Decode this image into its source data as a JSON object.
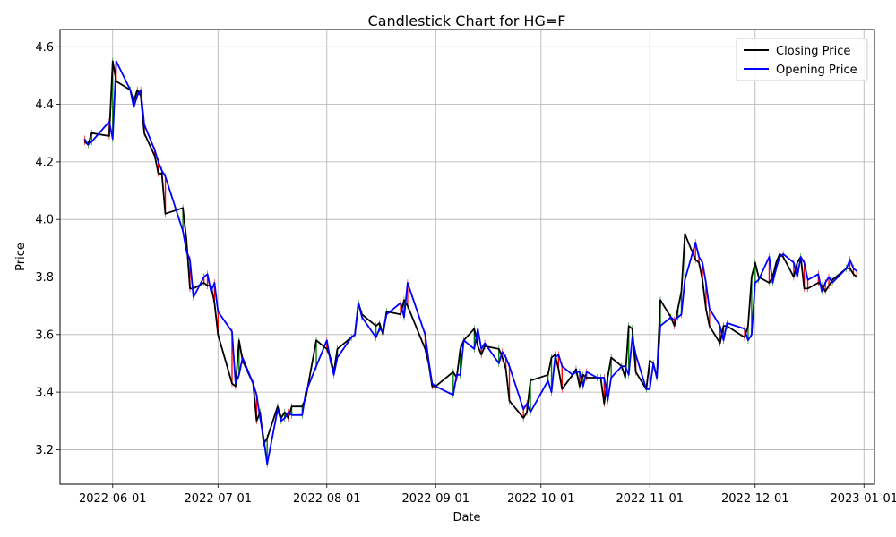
{
  "chart_data": {
    "type": "line",
    "title": "Candlestick Chart for HG=F",
    "xlabel": "Date",
    "ylabel": "Price",
    "x_range": [
      "2022-05-17",
      "2023-01-04"
    ],
    "ylim": [
      3.08,
      4.66
    ],
    "x_ticks": [
      "2022-06-01",
      "2022-07-01",
      "2022-08-01",
      "2022-09-01",
      "2022-10-01",
      "2022-11-01",
      "2022-12-01",
      "2023-01-01"
    ],
    "y_ticks": [
      3.2,
      3.4,
      3.6,
      3.8,
      4.0,
      4.2,
      4.4,
      4.6
    ],
    "y_tick_labels": [
      "3.2",
      "3.4",
      "3.6",
      "3.8",
      "4.0",
      "4.2",
      "4.4",
      "4.6"
    ],
    "grid": true,
    "legend_position": "upper-right",
    "candle_up_color": "#008000",
    "candle_down_color": "#ff0000",
    "series": [
      {
        "name": "Closing Price",
        "color": "#000000",
        "points": [
          [
            "2022-05-24",
            4.27
          ],
          [
            "2022-05-25",
            4.26
          ],
          [
            "2022-05-26",
            4.3
          ],
          [
            "2022-05-31",
            4.29
          ],
          [
            "2022-06-01",
            4.55
          ],
          [
            "2022-06-02",
            4.48
          ],
          [
            "2022-06-06",
            4.45
          ],
          [
            "2022-06-07",
            4.41
          ],
          [
            "2022-06-08",
            4.45
          ],
          [
            "2022-06-09",
            4.43
          ],
          [
            "2022-06-10",
            4.3
          ],
          [
            "2022-06-13",
            4.22
          ],
          [
            "2022-06-14",
            4.16
          ],
          [
            "2022-06-15",
            4.16
          ],
          [
            "2022-06-16",
            4.02
          ],
          [
            "2022-06-21",
            4.04
          ],
          [
            "2022-06-22",
            3.93
          ],
          [
            "2022-06-23",
            3.76
          ],
          [
            "2022-06-24",
            3.76
          ],
          [
            "2022-06-27",
            3.78
          ],
          [
            "2022-06-28",
            3.77
          ],
          [
            "2022-06-29",
            3.77
          ],
          [
            "2022-06-30",
            3.71
          ],
          [
            "2022-07-01",
            3.6
          ],
          [
            "2022-07-05",
            3.43
          ],
          [
            "2022-07-06",
            3.42
          ],
          [
            "2022-07-07",
            3.58
          ],
          [
            "2022-07-08",
            3.51
          ],
          [
            "2022-07-11",
            3.43
          ],
          [
            "2022-07-12",
            3.3
          ],
          [
            "2022-07-13",
            3.33
          ],
          [
            "2022-07-14",
            3.22
          ],
          [
            "2022-07-15",
            3.24
          ],
          [
            "2022-07-18",
            3.35
          ],
          [
            "2022-07-19",
            3.31
          ],
          [
            "2022-07-20",
            3.33
          ],
          [
            "2022-07-21",
            3.31
          ],
          [
            "2022-07-22",
            3.35
          ],
          [
            "2022-07-25",
            3.35
          ],
          [
            "2022-07-26",
            3.38
          ],
          [
            "2022-07-29",
            3.58
          ],
          [
            "2022-08-01",
            3.55
          ],
          [
            "2022-08-02",
            3.52
          ],
          [
            "2022-08-03",
            3.47
          ],
          [
            "2022-08-04",
            3.55
          ],
          [
            "2022-08-08",
            3.59
          ],
          [
            "2022-08-09",
            3.6
          ],
          [
            "2022-08-10",
            3.71
          ],
          [
            "2022-08-11",
            3.67
          ],
          [
            "2022-08-15",
            3.63
          ],
          [
            "2022-08-16",
            3.64
          ],
          [
            "2022-08-17",
            3.6
          ],
          [
            "2022-08-18",
            3.68
          ],
          [
            "2022-08-22",
            3.67
          ],
          [
            "2022-08-23",
            3.72
          ],
          [
            "2022-08-24",
            3.7
          ],
          [
            "2022-08-29",
            3.55
          ],
          [
            "2022-08-30",
            3.5
          ],
          [
            "2022-08-31",
            3.42
          ],
          [
            "2022-09-01",
            3.42
          ],
          [
            "2022-09-06",
            3.47
          ],
          [
            "2022-09-07",
            3.45
          ],
          [
            "2022-09-08",
            3.55
          ],
          [
            "2022-09-09",
            3.58
          ],
          [
            "2022-09-12",
            3.62
          ],
          [
            "2022-09-13",
            3.56
          ],
          [
            "2022-09-14",
            3.53
          ],
          [
            "2022-09-15",
            3.56
          ],
          [
            "2022-09-19",
            3.55
          ],
          [
            "2022-09-20",
            3.52
          ],
          [
            "2022-09-21",
            3.48
          ],
          [
            "2022-09-22",
            3.37
          ],
          [
            "2022-09-26",
            3.31
          ],
          [
            "2022-09-27",
            3.33
          ],
          [
            "2022-09-28",
            3.44
          ],
          [
            "2022-10-03",
            3.46
          ],
          [
            "2022-10-04",
            3.52
          ],
          [
            "2022-10-05",
            3.53
          ],
          [
            "2022-10-06",
            3.48
          ],
          [
            "2022-10-07",
            3.41
          ],
          [
            "2022-10-10",
            3.46
          ],
          [
            "2022-10-11",
            3.48
          ],
          [
            "2022-10-12",
            3.42
          ],
          [
            "2022-10-13",
            3.46
          ],
          [
            "2022-10-14",
            3.45
          ],
          [
            "2022-10-17",
            3.45
          ],
          [
            "2022-10-18",
            3.45
          ],
          [
            "2022-10-19",
            3.36
          ],
          [
            "2022-10-20",
            3.45
          ],
          [
            "2022-10-21",
            3.52
          ],
          [
            "2022-10-24",
            3.49
          ],
          [
            "2022-10-25",
            3.45
          ],
          [
            "2022-10-26",
            3.63
          ],
          [
            "2022-10-27",
            3.62
          ],
          [
            "2022-10-28",
            3.47
          ],
          [
            "2022-10-31",
            3.41
          ],
          [
            "2022-11-01",
            3.51
          ],
          [
            "2022-11-02",
            3.5
          ],
          [
            "2022-11-03",
            3.45
          ],
          [
            "2022-11-04",
            3.72
          ],
          [
            "2022-11-07",
            3.66
          ],
          [
            "2022-11-08",
            3.63
          ],
          [
            "2022-11-09",
            3.69
          ],
          [
            "2022-11-10",
            3.75
          ],
          [
            "2022-11-11",
            3.95
          ],
          [
            "2022-11-14",
            3.86
          ],
          [
            "2022-11-15",
            3.85
          ],
          [
            "2022-11-16",
            3.79
          ],
          [
            "2022-11-17",
            3.69
          ],
          [
            "2022-11-18",
            3.63
          ],
          [
            "2022-11-21",
            3.57
          ],
          [
            "2022-11-22",
            3.63
          ],
          [
            "2022-11-23",
            3.63
          ],
          [
            "2022-11-28",
            3.59
          ],
          [
            "2022-11-29",
            3.63
          ],
          [
            "2022-11-30",
            3.8
          ],
          [
            "2022-12-01",
            3.85
          ],
          [
            "2022-12-02",
            3.8
          ],
          [
            "2022-12-05",
            3.78
          ],
          [
            "2022-12-06",
            3.8
          ],
          [
            "2022-12-07",
            3.85
          ],
          [
            "2022-12-08",
            3.88
          ],
          [
            "2022-12-09",
            3.87
          ],
          [
            "2022-12-12",
            3.8
          ],
          [
            "2022-12-13",
            3.85
          ],
          [
            "2022-12-14",
            3.87
          ],
          [
            "2022-12-15",
            3.76
          ],
          [
            "2022-12-16",
            3.76
          ],
          [
            "2022-12-19",
            3.78
          ],
          [
            "2022-12-20",
            3.77
          ],
          [
            "2022-12-21",
            3.75
          ],
          [
            "2022-12-22",
            3.77
          ],
          [
            "2022-12-23",
            3.79
          ],
          [
            "2022-12-27",
            3.83
          ],
          [
            "2022-12-28",
            3.83
          ],
          [
            "2022-12-29",
            3.81
          ],
          [
            "2022-12-30",
            3.8
          ]
        ]
      },
      {
        "name": "Opening Price",
        "color": "#0000ff",
        "points": [
          [
            "2022-05-24",
            4.28
          ],
          [
            "2022-05-25",
            4.26
          ],
          [
            "2022-05-26",
            4.27
          ],
          [
            "2022-05-31",
            4.34
          ],
          [
            "2022-06-01",
            4.28
          ],
          [
            "2022-06-02",
            4.55
          ],
          [
            "2022-06-06",
            4.45
          ],
          [
            "2022-06-07",
            4.39
          ],
          [
            "2022-06-08",
            4.43
          ],
          [
            "2022-06-09",
            4.45
          ],
          [
            "2022-06-10",
            4.33
          ],
          [
            "2022-06-13",
            4.24
          ],
          [
            "2022-06-14",
            4.2
          ],
          [
            "2022-06-15",
            4.17
          ],
          [
            "2022-06-16",
            4.15
          ],
          [
            "2022-06-21",
            3.96
          ],
          [
            "2022-06-22",
            3.89
          ],
          [
            "2022-06-23",
            3.86
          ],
          [
            "2022-06-24",
            3.73
          ],
          [
            "2022-06-27",
            3.8
          ],
          [
            "2022-06-28",
            3.81
          ],
          [
            "2022-06-29",
            3.75
          ],
          [
            "2022-06-30",
            3.78
          ],
          [
            "2022-07-01",
            3.68
          ],
          [
            "2022-07-05",
            3.61
          ],
          [
            "2022-07-06",
            3.43
          ],
          [
            "2022-07-07",
            3.46
          ],
          [
            "2022-07-08",
            3.52
          ],
          [
            "2022-07-11",
            3.43
          ],
          [
            "2022-07-12",
            3.39
          ],
          [
            "2022-07-13",
            3.31
          ],
          [
            "2022-07-14",
            3.24
          ],
          [
            "2022-07-15",
            3.15
          ],
          [
            "2022-07-18",
            3.34
          ],
          [
            "2022-07-19",
            3.3
          ],
          [
            "2022-07-20",
            3.31
          ],
          [
            "2022-07-21",
            3.33
          ],
          [
            "2022-07-22",
            3.32
          ],
          [
            "2022-07-25",
            3.32
          ],
          [
            "2022-07-26",
            3.4
          ],
          [
            "2022-07-29",
            3.49
          ],
          [
            "2022-08-01",
            3.58
          ],
          [
            "2022-08-02",
            3.51
          ],
          [
            "2022-08-03",
            3.46
          ],
          [
            "2022-08-04",
            3.52
          ],
          [
            "2022-08-08",
            3.59
          ],
          [
            "2022-08-09",
            3.6
          ],
          [
            "2022-08-10",
            3.71
          ],
          [
            "2022-08-11",
            3.66
          ],
          [
            "2022-08-15",
            3.59
          ],
          [
            "2022-08-16",
            3.62
          ],
          [
            "2022-08-17",
            3.61
          ],
          [
            "2022-08-18",
            3.67
          ],
          [
            "2022-08-22",
            3.71
          ],
          [
            "2022-08-23",
            3.66
          ],
          [
            "2022-08-24",
            3.78
          ],
          [
            "2022-08-29",
            3.6
          ],
          [
            "2022-08-30",
            3.51
          ],
          [
            "2022-08-31",
            3.43
          ],
          [
            "2022-09-01",
            3.42
          ],
          [
            "2022-09-06",
            3.39
          ],
          [
            "2022-09-07",
            3.46
          ],
          [
            "2022-09-08",
            3.46
          ],
          [
            "2022-09-09",
            3.58
          ],
          [
            "2022-09-12",
            3.55
          ],
          [
            "2022-09-13",
            3.62
          ],
          [
            "2022-09-14",
            3.55
          ],
          [
            "2022-09-15",
            3.57
          ],
          [
            "2022-09-19",
            3.5
          ],
          [
            "2022-09-20",
            3.54
          ],
          [
            "2022-09-21",
            3.52
          ],
          [
            "2022-09-22",
            3.49
          ],
          [
            "2022-09-26",
            3.34
          ],
          [
            "2022-09-27",
            3.36
          ],
          [
            "2022-09-28",
            3.33
          ],
          [
            "2022-10-03",
            3.44
          ],
          [
            "2022-10-04",
            3.4
          ],
          [
            "2022-10-05",
            3.52
          ],
          [
            "2022-10-06",
            3.53
          ],
          [
            "2022-10-07",
            3.49
          ],
          [
            "2022-10-10",
            3.46
          ],
          [
            "2022-10-11",
            3.47
          ],
          [
            "2022-10-12",
            3.47
          ],
          [
            "2022-10-13",
            3.42
          ],
          [
            "2022-10-14",
            3.47
          ],
          [
            "2022-10-17",
            3.45
          ],
          [
            "2022-10-18",
            3.45
          ],
          [
            "2022-10-19",
            3.45
          ],
          [
            "2022-10-20",
            3.37
          ],
          [
            "2022-10-21",
            3.45
          ],
          [
            "2022-10-24",
            3.49
          ],
          [
            "2022-10-25",
            3.49
          ],
          [
            "2022-10-26",
            3.46
          ],
          [
            "2022-10-27",
            3.59
          ],
          [
            "2022-10-28",
            3.53
          ],
          [
            "2022-10-31",
            3.41
          ],
          [
            "2022-11-01",
            3.41
          ],
          [
            "2022-11-02",
            3.5
          ],
          [
            "2022-11-03",
            3.45
          ],
          [
            "2022-11-04",
            3.63
          ],
          [
            "2022-11-07",
            3.66
          ],
          [
            "2022-11-08",
            3.65
          ],
          [
            "2022-11-09",
            3.66
          ],
          [
            "2022-11-10",
            3.67
          ],
          [
            "2022-11-11",
            3.79
          ],
          [
            "2022-11-14",
            3.92
          ],
          [
            "2022-11-15",
            3.87
          ],
          [
            "2022-11-16",
            3.85
          ],
          [
            "2022-11-17",
            3.78
          ],
          [
            "2022-11-18",
            3.69
          ],
          [
            "2022-11-21",
            3.63
          ],
          [
            "2022-11-22",
            3.58
          ],
          [
            "2022-11-23",
            3.64
          ],
          [
            "2022-11-28",
            3.62
          ],
          [
            "2022-11-29",
            3.58
          ],
          [
            "2022-11-30",
            3.6
          ],
          [
            "2022-12-01",
            3.78
          ],
          [
            "2022-12-02",
            3.79
          ],
          [
            "2022-12-05",
            3.87
          ],
          [
            "2022-12-06",
            3.78
          ],
          [
            "2022-12-07",
            3.83
          ],
          [
            "2022-12-08",
            3.87
          ],
          [
            "2022-12-09",
            3.88
          ],
          [
            "2022-12-12",
            3.85
          ],
          [
            "2022-12-13",
            3.8
          ],
          [
            "2022-12-14",
            3.87
          ],
          [
            "2022-12-15",
            3.85
          ],
          [
            "2022-12-16",
            3.79
          ],
          [
            "2022-12-19",
            3.81
          ],
          [
            "2022-12-20",
            3.75
          ],
          [
            "2022-12-21",
            3.78
          ],
          [
            "2022-12-22",
            3.8
          ],
          [
            "2022-12-23",
            3.78
          ],
          [
            "2022-12-27",
            3.83
          ],
          [
            "2022-12-28",
            3.86
          ],
          [
            "2022-12-29",
            3.83
          ],
          [
            "2022-12-30",
            3.82
          ]
        ]
      }
    ]
  }
}
